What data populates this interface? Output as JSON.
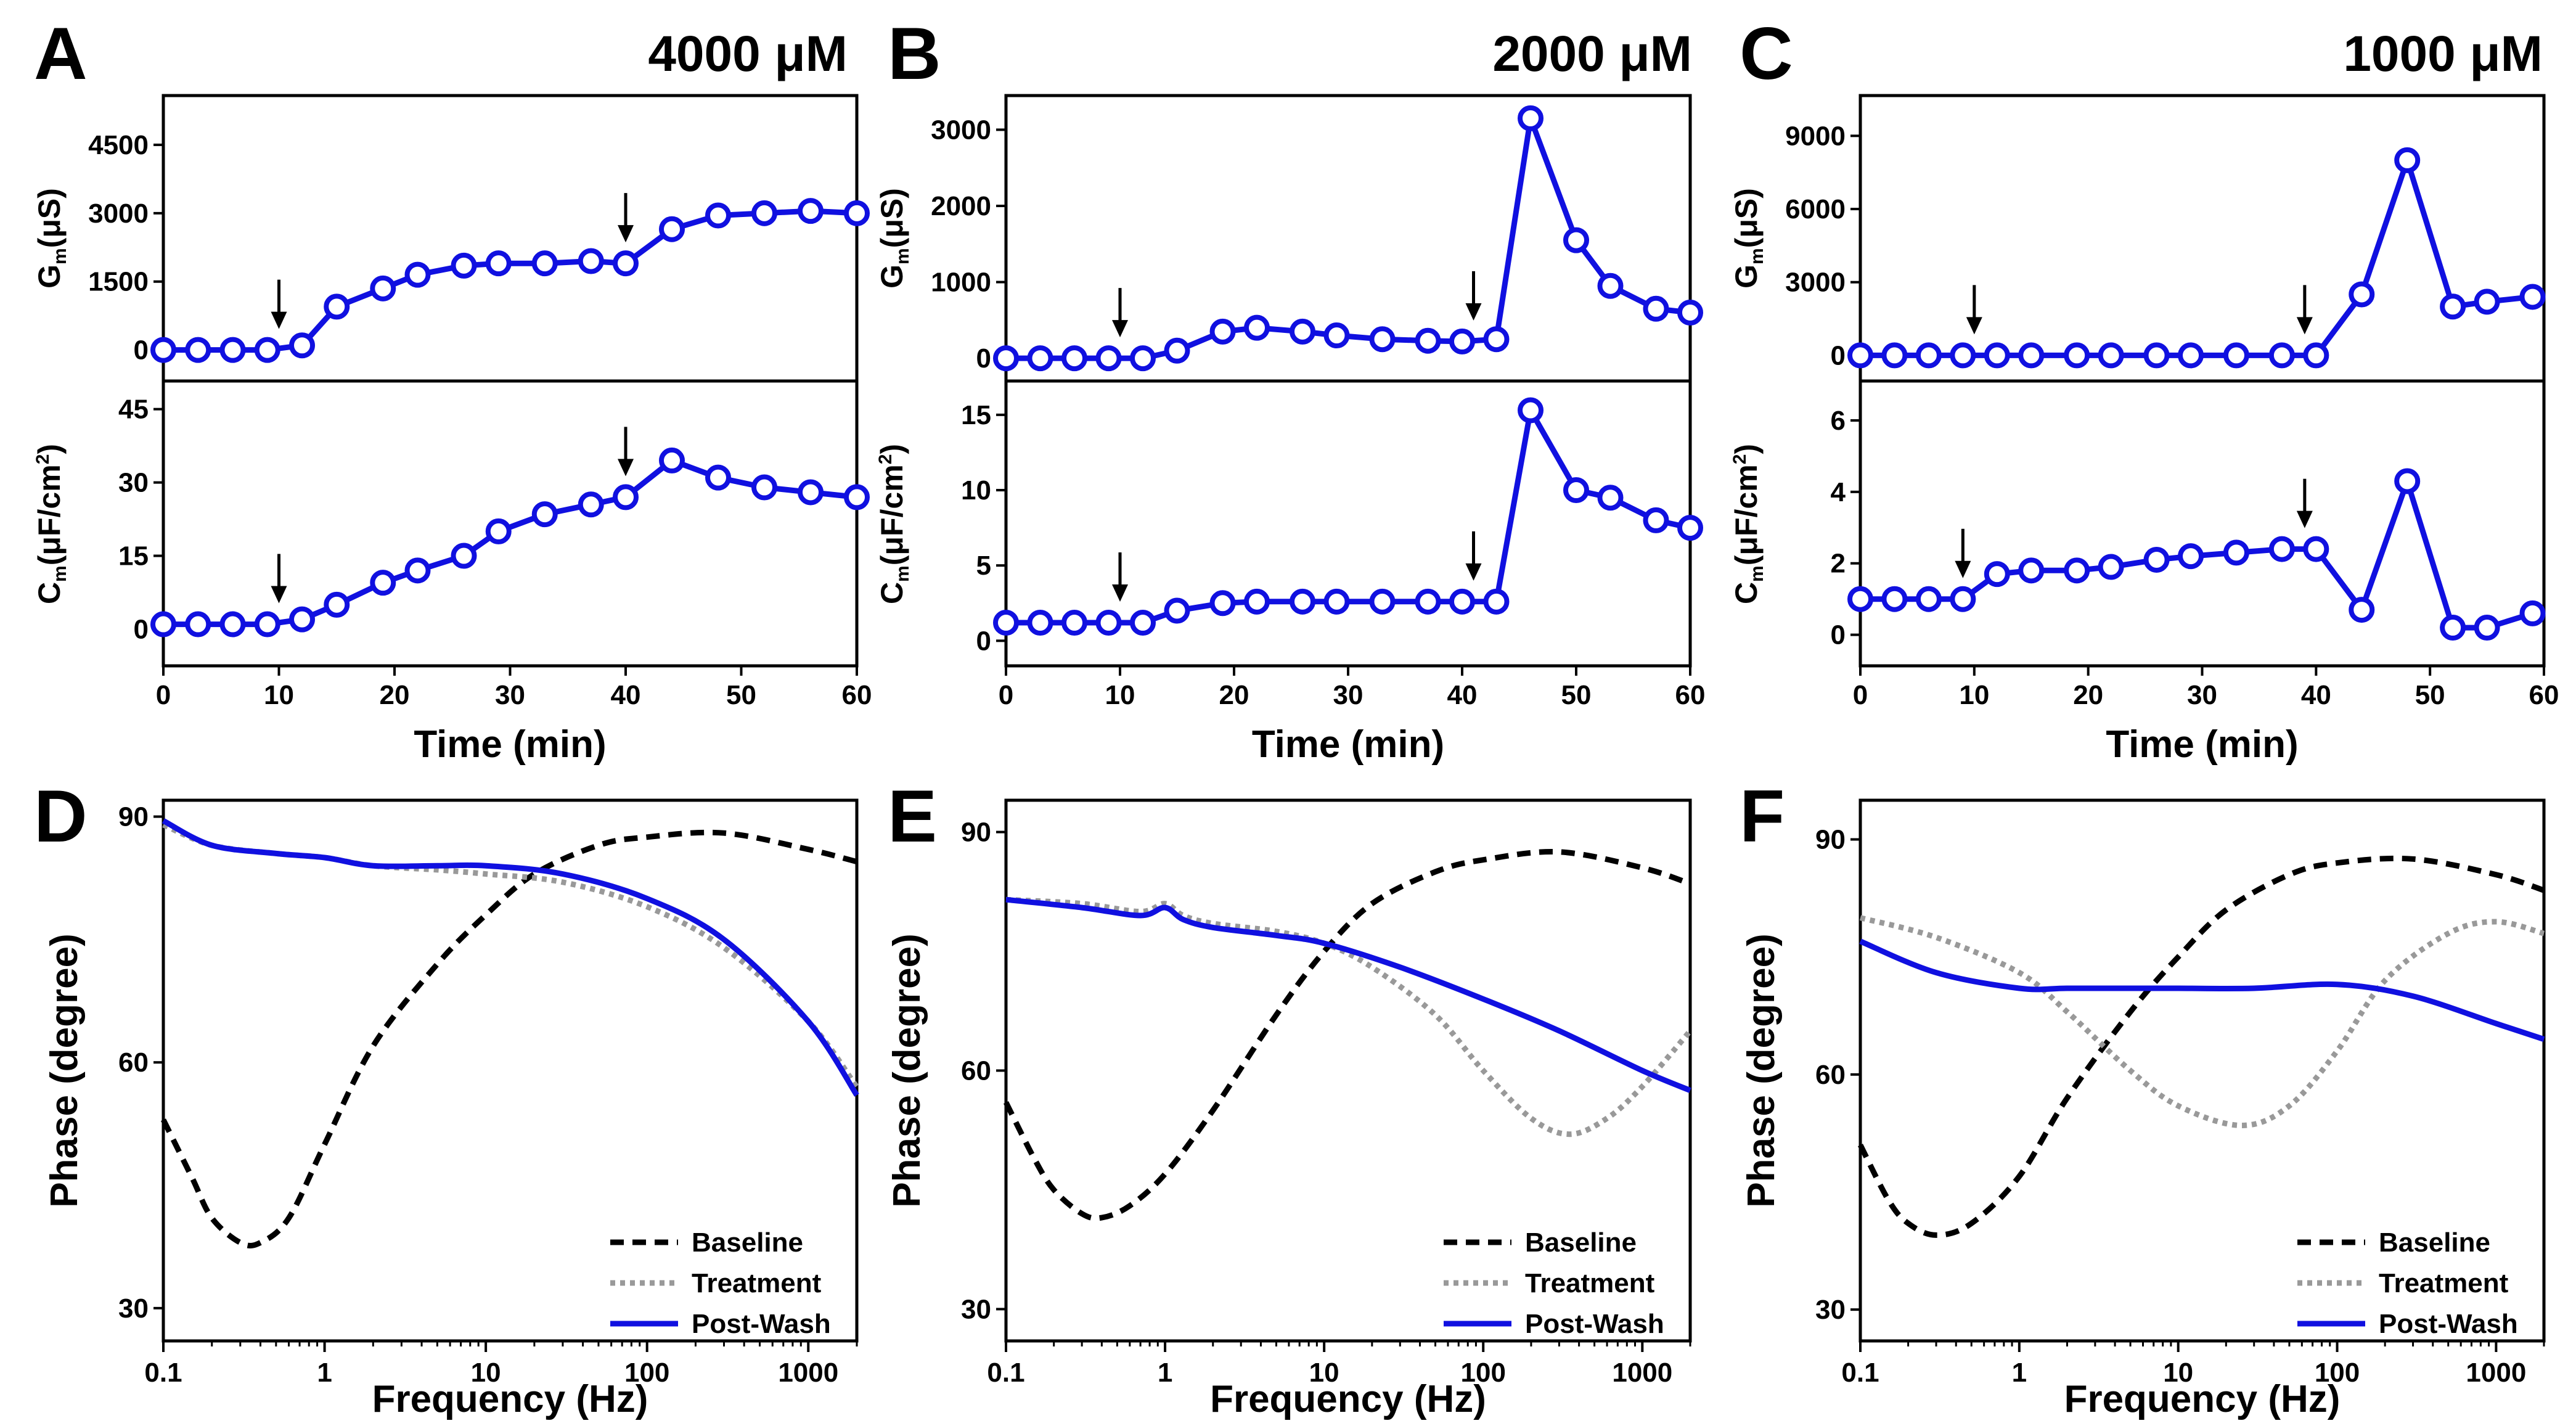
{
  "chart_data": [
    {
      "panel": "A",
      "type": "line",
      "title": "4000 μM",
      "xlabel": "Time (min)",
      "xlim": [
        0,
        60
      ],
      "xticks": [
        0,
        10,
        20,
        30,
        40,
        50,
        60
      ],
      "top": {
        "ylabel_main": "G",
        "ylabel_sub": "m",
        "ylabel_unit": "(μS)",
        "ylim": [
          -600,
          5500
        ],
        "yticks": [
          0,
          1500,
          3000,
          4500
        ],
        "x": [
          0,
          3,
          6,
          9,
          12,
          15,
          19,
          22,
          26,
          29,
          33,
          37,
          40,
          44,
          48,
          52,
          56,
          60
        ],
        "y": [
          0,
          0,
          0,
          0,
          100,
          950,
          1350,
          1650,
          1850,
          1900,
          1900,
          1950,
          1900,
          2650,
          2950,
          3000,
          3050,
          3000
        ],
        "arrows_x": [
          10,
          40
        ]
      },
      "bottom": {
        "ylabel_main": "C",
        "ylabel_sub": "m",
        "ylabel_unit": "(μF/cm",
        "ylabel_sup": "2",
        "ylabel_close": ")",
        "ylim": [
          -7,
          50
        ],
        "yticks": [
          0,
          15,
          30,
          45
        ],
        "x": [
          0,
          3,
          6,
          9,
          12,
          15,
          19,
          22,
          26,
          29,
          33,
          37,
          40,
          44,
          48,
          52,
          56,
          60
        ],
        "y": [
          1,
          1,
          1,
          1,
          2,
          5,
          9.5,
          12,
          15,
          20,
          23.5,
          25.5,
          27,
          34.5,
          31,
          29,
          28,
          27
        ],
        "arrows_x": [
          10,
          40
        ]
      }
    },
    {
      "panel": "B",
      "type": "line",
      "title": "2000 μM",
      "xlabel": "Time (min)",
      "xlim": [
        0,
        60
      ],
      "xticks": [
        0,
        10,
        20,
        30,
        40,
        50,
        60
      ],
      "top": {
        "ylabel_main": "G",
        "ylabel_sub": "m",
        "ylabel_unit": "(μS)",
        "ylim": [
          -250,
          3400
        ],
        "yticks": [
          0,
          1000,
          2000,
          3000
        ],
        "x": [
          0,
          3,
          6,
          9,
          12,
          15,
          19,
          22,
          26,
          29,
          33,
          37,
          40,
          43,
          46,
          50,
          53,
          57,
          60
        ],
        "y": [
          0,
          0,
          0,
          0,
          0,
          100,
          350,
          400,
          350,
          300,
          250,
          230,
          220,
          250,
          3150,
          1550,
          950,
          650,
          600
        ],
        "arrows_x": [
          10,
          41
        ]
      },
      "bottom": {
        "ylabel_main": "C",
        "ylabel_sub": "m",
        "ylabel_unit": "(μF/cm",
        "ylabel_sup": "2",
        "ylabel_close": ")",
        "ylim": [
          -1.5,
          17
        ],
        "yticks": [
          0,
          5,
          10,
          15
        ],
        "x": [
          0,
          3,
          6,
          9,
          12,
          15,
          19,
          22,
          26,
          29,
          33,
          37,
          40,
          43,
          46,
          50,
          53,
          57,
          60
        ],
        "y": [
          1.2,
          1.2,
          1.2,
          1.2,
          1.2,
          2,
          2.5,
          2.6,
          2.6,
          2.6,
          2.6,
          2.6,
          2.6,
          2.6,
          15.3,
          10,
          9.5,
          8,
          7.5
        ],
        "arrows_x": [
          10,
          41
        ]
      }
    },
    {
      "panel": "C",
      "type": "line",
      "title": "1000 μM",
      "xlabel": "Time (min)",
      "xlim": [
        0,
        60
      ],
      "xticks": [
        0,
        10,
        20,
        30,
        40,
        50,
        60
      ],
      "top": {
        "ylabel_main": "G",
        "ylabel_sub": "m",
        "ylabel_unit": "(μS)",
        "ylim": [
          -900,
          10500
        ],
        "yticks": [
          0,
          3000,
          6000,
          9000
        ],
        "x": [
          0,
          3,
          6,
          9,
          12,
          15,
          19,
          22,
          26,
          29,
          33,
          37,
          40,
          44,
          48,
          52,
          55,
          59
        ],
        "y": [
          0,
          0,
          0,
          0,
          0,
          0,
          0,
          0,
          0,
          0,
          0,
          0,
          0,
          2500,
          8000,
          2000,
          2200,
          2400
        ],
        "arrows_x": [
          10,
          39
        ]
      },
      "bottom": {
        "ylabel_main": "C",
        "ylabel_sub": "m",
        "ylabel_unit": "(μF/cm",
        "ylabel_sup": "2",
        "ylabel_close": ")",
        "ylim": [
          -0.8,
          7
        ],
        "yticks": [
          0,
          2,
          4,
          6
        ],
        "x": [
          0,
          3,
          6,
          9,
          12,
          15,
          19,
          22,
          26,
          29,
          33,
          37,
          40,
          44,
          48,
          52,
          55,
          59
        ],
        "y": [
          1,
          1,
          1,
          1,
          1.7,
          1.8,
          1.8,
          1.9,
          2.1,
          2.2,
          2.3,
          2.4,
          2.4,
          0.7,
          4.3,
          0.2,
          0.2,
          0.6
        ],
        "arrows_x": [
          9,
          39
        ]
      }
    },
    {
      "panel": "D",
      "type": "line",
      "xlabel": "Frequency (Hz)",
      "ylabel": "Phase (degree)",
      "xscale": "log",
      "xlim": [
        0.1,
        2000
      ],
      "ylim": [
        26,
        92
      ],
      "xticks": [
        0.1,
        1,
        10,
        100,
        1000
      ],
      "xtick_labels": [
        "0.1",
        "1",
        "10",
        "100",
        "1000"
      ],
      "yticks": [
        30,
        60,
        90
      ],
      "legend": [
        "Baseline",
        "Treatment",
        "Post-Wash"
      ],
      "series": [
        {
          "name": "Baseline",
          "style": "dashed",
          "color": "#000000",
          "x": [
            0.1,
            0.15,
            0.2,
            0.3,
            0.4,
            0.6,
            1,
            2,
            5,
            10,
            20,
            50,
            100,
            300,
            1000,
            2000
          ],
          "y": [
            53,
            46,
            41,
            38,
            38,
            41,
            50,
            62,
            72,
            78,
            83,
            86.5,
            87.5,
            88,
            86,
            84.5
          ]
        },
        {
          "name": "Treatment",
          "style": "dotted",
          "color": "#999999",
          "x": [
            0.1,
            0.2,
            0.5,
            1,
            2,
            5,
            10,
            30,
            100,
            300,
            1000,
            2000
          ],
          "y": [
            89,
            86.5,
            85.5,
            85,
            84,
            83.5,
            83,
            82,
            79,
            74,
            65,
            57
          ]
        },
        {
          "name": "Post-Wash",
          "style": "solid",
          "color": "#1010e0",
          "x": [
            0.1,
            0.2,
            0.5,
            1,
            2,
            5,
            10,
            30,
            100,
            300,
            1000,
            2000
          ],
          "y": [
            89.5,
            86.5,
            85.5,
            85,
            84,
            84,
            84,
            83,
            80,
            75,
            65,
            56
          ]
        }
      ]
    },
    {
      "panel": "E",
      "type": "line",
      "xlabel": "Frequency (Hz)",
      "ylabel": "Phase (degree)",
      "xscale": "log",
      "xlim": [
        0.1,
        2000
      ],
      "ylim": [
        26,
        94
      ],
      "xticks": [
        0.1,
        1,
        10,
        100,
        1000
      ],
      "xtick_labels": [
        "0.1",
        "1",
        "10",
        "100",
        "1000"
      ],
      "yticks": [
        30,
        60,
        90
      ],
      "legend": [
        "Baseline",
        "Treatment",
        "Post-Wash"
      ],
      "series": [
        {
          "name": "Baseline",
          "style": "dashed",
          "color": "#000000",
          "x": [
            0.1,
            0.15,
            0.2,
            0.3,
            0.4,
            0.6,
            1,
            2,
            5,
            10,
            20,
            50,
            100,
            300,
            1000,
            2000
          ],
          "y": [
            56,
            49,
            45,
            42,
            41.5,
            43,
            47,
            55,
            67,
            75,
            81,
            85,
            86.5,
            87.5,
            85.5,
            83.5
          ]
        },
        {
          "name": "Treatment",
          "style": "dotted",
          "color": "#999999",
          "x": [
            0.1,
            0.3,
            0.7,
            1,
            1.3,
            2,
            5,
            10,
            20,
            50,
            100,
            200,
            350,
            600,
            1000,
            2000
          ],
          "y": [
            81.5,
            81,
            80,
            81,
            79.5,
            78.5,
            77.5,
            76,
            73,
            67,
            60,
            54,
            52,
            54,
            58,
            65
          ]
        },
        {
          "name": "Post-Wash",
          "style": "solid",
          "color": "#1010e0",
          "x": [
            0.1,
            0.3,
            0.7,
            1,
            1.3,
            2,
            5,
            10,
            30,
            100,
            300,
            1000,
            2000
          ],
          "y": [
            81.5,
            80.5,
            79.5,
            80.5,
            79,
            78,
            77,
            76,
            73,
            69,
            65,
            60,
            57.5
          ]
        }
      ]
    },
    {
      "panel": "F",
      "type": "line",
      "xlabel": "Frequency (Hz)",
      "ylabel": "Phase (degree)",
      "xscale": "log",
      "xlim": [
        0.1,
        2000
      ],
      "ylim": [
        26,
        95
      ],
      "xticks": [
        0.1,
        1,
        10,
        100,
        1000
      ],
      "xtick_labels": [
        "0.1",
        "1",
        "10",
        "100",
        "1000"
      ],
      "yticks": [
        30,
        60,
        90
      ],
      "legend": [
        "Baseline",
        "Treatment",
        "Post-Wash"
      ],
      "series": [
        {
          "name": "Baseline",
          "style": "dashed",
          "color": "#000000",
          "x": [
            0.1,
            0.15,
            0.2,
            0.3,
            0.5,
            1,
            2,
            5,
            10,
            20,
            50,
            100,
            300,
            1000,
            2000
          ],
          "y": [
            51,
            44,
            41,
            39.5,
            41,
            47,
            57,
            68,
            75,
            81,
            85.5,
            87,
            87.5,
            85.5,
            83.5
          ]
        },
        {
          "name": "Treatment",
          "style": "dotted",
          "color": "#999999",
          "x": [
            0.1,
            0.3,
            1,
            2,
            5,
            10,
            25,
            50,
            100,
            200,
            500,
            1000,
            2000
          ],
          "y": [
            80,
            77.5,
            73,
            68,
            60.5,
            56,
            53.5,
            56,
            63,
            72,
            78,
            79.5,
            78
          ]
        },
        {
          "name": "Post-Wash",
          "style": "solid",
          "color": "#1010e0",
          "x": [
            0.1,
            0.3,
            1,
            2,
            5,
            10,
            30,
            100,
            300,
            1000,
            2000
          ],
          "y": [
            77,
            73,
            71,
            71,
            71,
            71,
            71,
            71.5,
            70,
            66.5,
            64.5
          ]
        }
      ]
    }
  ]
}
